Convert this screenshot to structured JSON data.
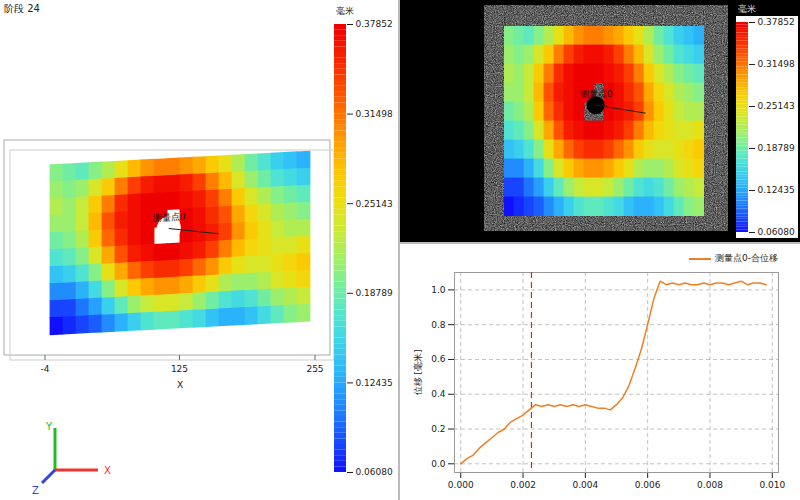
{
  "chart_data": [
    {
      "type": "heatmap",
      "title": "阶段 24",
      "xlim": [
        -4,
        255
      ],
      "xticks": [
        -4,
        125,
        255
      ],
      "xlabel": "X",
      "axis_labels": [
        "X",
        "Y",
        "Z"
      ],
      "annotation": "测量点0",
      "colorbar": {
        "label": "毫米",
        "range": [
          0.0608,
          0.37852
        ],
        "ticks": [
          {
            "value": 0.0608,
            "label": "0.06080"
          },
          0.12435,
          0.18789,
          0.25143,
          0.31498,
          0.37852
        ]
      },
      "cells": [
        [
          0.2,
          0.19,
          0.18,
          0.2,
          0.22,
          0.25,
          0.28,
          0.3,
          0.31,
          0.31,
          0.3,
          0.29,
          0.27,
          0.25,
          0.22,
          0.19,
          0.17,
          0.15,
          0.14,
          0.13
        ],
        [
          0.21,
          0.2,
          0.21,
          0.24,
          0.27,
          0.31,
          0.34,
          0.36,
          0.37,
          0.37,
          0.36,
          0.34,
          0.31,
          0.28,
          0.24,
          0.21,
          0.19,
          0.17,
          0.16,
          0.15
        ],
        [
          0.22,
          0.21,
          0.23,
          0.27,
          0.31,
          0.35,
          0.37,
          0.38,
          0.38,
          0.38,
          0.37,
          0.36,
          0.34,
          0.31,
          0.27,
          0.24,
          0.22,
          0.2,
          0.19,
          0.18
        ],
        [
          0.21,
          0.21,
          0.23,
          0.28,
          0.33,
          0.36,
          0.37,
          0.38,
          0.38,
          null,
          0.38,
          0.37,
          0.35,
          0.33,
          0.29,
          0.26,
          0.24,
          0.22,
          0.21,
          0.2
        ],
        [
          0.19,
          0.2,
          0.22,
          0.27,
          0.32,
          0.35,
          0.37,
          0.38,
          null,
          null,
          0.38,
          0.37,
          0.36,
          0.34,
          0.3,
          0.27,
          0.25,
          0.23,
          0.22,
          0.22
        ],
        [
          0.17,
          0.18,
          0.2,
          0.24,
          0.29,
          0.33,
          0.36,
          0.37,
          0.38,
          0.38,
          0.37,
          0.36,
          0.34,
          0.31,
          0.28,
          0.26,
          0.25,
          0.24,
          0.24,
          0.25
        ],
        [
          0.14,
          0.15,
          0.17,
          0.2,
          0.25,
          0.29,
          0.32,
          0.34,
          0.35,
          0.35,
          0.34,
          0.32,
          0.3,
          0.27,
          0.25,
          0.24,
          0.24,
          0.25,
          0.26,
          0.27
        ],
        [
          0.11,
          0.11,
          0.13,
          0.16,
          0.2,
          0.24,
          0.27,
          0.29,
          0.3,
          0.3,
          0.29,
          0.27,
          0.25,
          0.22,
          0.21,
          0.21,
          0.22,
          0.24,
          0.25,
          0.26
        ],
        [
          0.08,
          0.08,
          0.1,
          0.12,
          0.15,
          0.18,
          0.21,
          0.23,
          0.24,
          0.24,
          0.23,
          0.21,
          0.19,
          0.17,
          0.16,
          0.17,
          0.19,
          0.21,
          0.22,
          0.23
        ],
        [
          0.06,
          0.07,
          0.08,
          0.09,
          0.11,
          0.13,
          0.15,
          0.17,
          0.18,
          0.18,
          0.17,
          0.16,
          0.14,
          0.13,
          0.13,
          0.14,
          0.16,
          0.18,
          0.2,
          0.21
        ]
      ]
    },
    {
      "type": "heatmap",
      "annotation": "测量点0",
      "colorbar": {
        "label": "毫米",
        "range": [
          0.0608,
          0.37852
        ],
        "ticks": [
          {
            "value": 0.0608,
            "label": "0.06080"
          },
          0.12435,
          0.18789,
          0.25143,
          0.31498,
          0.37852
        ]
      },
      "cells": [
        [
          0.2,
          0.19,
          0.18,
          0.2,
          0.22,
          0.25,
          0.28,
          0.3,
          0.31,
          0.31,
          0.3,
          0.29,
          0.27,
          0.25,
          0.22,
          0.19,
          0.17,
          0.15,
          0.14,
          0.13
        ],
        [
          0.21,
          0.2,
          0.21,
          0.24,
          0.27,
          0.31,
          0.34,
          0.36,
          0.37,
          0.37,
          0.36,
          0.34,
          0.31,
          0.28,
          0.24,
          0.21,
          0.19,
          0.17,
          0.16,
          0.15
        ],
        [
          0.22,
          0.21,
          0.23,
          0.27,
          0.31,
          0.35,
          0.37,
          0.38,
          0.38,
          0.38,
          0.37,
          0.36,
          0.34,
          0.31,
          0.27,
          0.24,
          0.22,
          0.2,
          0.19,
          0.18
        ],
        [
          0.21,
          0.21,
          0.23,
          0.28,
          0.33,
          0.36,
          0.37,
          0.38,
          0.38,
          null,
          0.38,
          0.37,
          0.35,
          0.33,
          0.29,
          0.26,
          0.24,
          0.22,
          0.21,
          0.2
        ],
        [
          0.19,
          0.2,
          0.22,
          0.27,
          0.32,
          0.35,
          0.37,
          0.38,
          null,
          null,
          0.38,
          0.37,
          0.36,
          0.34,
          0.3,
          0.27,
          0.25,
          0.23,
          0.22,
          0.22
        ],
        [
          0.17,
          0.18,
          0.2,
          0.24,
          0.29,
          0.33,
          0.36,
          0.37,
          0.38,
          0.38,
          0.37,
          0.36,
          0.34,
          0.31,
          0.28,
          0.26,
          0.25,
          0.24,
          0.24,
          0.25
        ],
        [
          0.14,
          0.15,
          0.17,
          0.2,
          0.25,
          0.29,
          0.32,
          0.34,
          0.35,
          0.35,
          0.34,
          0.32,
          0.3,
          0.27,
          0.25,
          0.24,
          0.24,
          0.25,
          0.26,
          0.27
        ],
        [
          0.11,
          0.11,
          0.13,
          0.16,
          0.2,
          0.24,
          0.27,
          0.29,
          0.3,
          0.3,
          0.29,
          0.27,
          0.25,
          0.22,
          0.21,
          0.21,
          0.22,
          0.24,
          0.25,
          0.26
        ],
        [
          0.08,
          0.08,
          0.1,
          0.12,
          0.15,
          0.18,
          0.21,
          0.23,
          0.24,
          0.24,
          0.23,
          0.21,
          0.19,
          0.17,
          0.16,
          0.17,
          0.19,
          0.21,
          0.22,
          0.23
        ],
        [
          0.06,
          0.07,
          0.08,
          0.09,
          0.11,
          0.13,
          0.15,
          0.17,
          0.18,
          0.18,
          0.17,
          0.16,
          0.14,
          0.13,
          0.13,
          0.14,
          0.16,
          0.18,
          0.2,
          0.21
        ]
      ]
    },
    {
      "type": "line",
      "ylabel": "位移 [毫米]",
      "grid": true,
      "legend": "top-right",
      "vline": 0.00227,
      "x": [
        0,
        0.0002,
        0.0004,
        0.0006,
        0.0008,
        0.001,
        0.0012,
        0.0014,
        0.0016,
        0.0018,
        0.002,
        0.0022,
        0.0024,
        0.0026,
        0.0028,
        0.003,
        0.0032,
        0.0034,
        0.0036,
        0.0038,
        0.004,
        0.0042,
        0.0044,
        0.0046,
        0.0048,
        0.005,
        0.0052,
        0.0054,
        0.0056,
        0.0058,
        0.006,
        0.0062,
        0.0064,
        0.0066,
        0.0068,
        0.007,
        0.0072,
        0.0074,
        0.0076,
        0.0078,
        0.008,
        0.0082,
        0.0084,
        0.0086,
        0.0088,
        0.009,
        0.0092,
        0.0094,
        0.0096,
        0.0098
      ],
      "series": [
        {
          "name": "测量点0-合位移",
          "color": "#f07f25",
          "values": [
            0.0,
            0.03,
            0.05,
            0.09,
            0.12,
            0.15,
            0.18,
            0.2,
            0.24,
            0.26,
            0.28,
            0.31,
            0.34,
            0.33,
            0.34,
            0.33,
            0.34,
            0.33,
            0.34,
            0.33,
            0.34,
            0.33,
            0.32,
            0.32,
            0.31,
            0.34,
            0.38,
            0.45,
            0.55,
            0.66,
            0.8,
            0.95,
            1.05,
            1.03,
            1.04,
            1.03,
            1.04,
            1.03,
            1.03,
            1.04,
            1.03,
            1.04,
            1.04,
            1.03,
            1.04,
            1.05,
            1.03,
            1.04,
            1.04,
            1.03
          ]
        }
      ],
      "xlim": [
        -0.0002,
        0.0102
      ],
      "xticks": [
        {
          "value": 0,
          "label": "0.000"
        },
        {
          "value": 0.002,
          "label": "0.002"
        },
        {
          "value": 0.004,
          "label": "0.004"
        },
        {
          "value": 0.006,
          "label": "0.006"
        },
        {
          "value": 0.008,
          "label": "0.008"
        },
        {
          "value": 0.01,
          "label": "0.010"
        }
      ],
      "ylim": [
        -0.05,
        1.1
      ],
      "yticks": [
        {
          "value": 0,
          "label": "0.0"
        },
        {
          "value": 0.2,
          "label": "0.2"
        },
        {
          "value": 0.4,
          "label": "0.4"
        },
        {
          "value": 0.6,
          "label": "0.6"
        },
        {
          "value": 0.8,
          "label": "0.8"
        },
        {
          "value": 1,
          "label": "1.0"
        }
      ]
    }
  ]
}
